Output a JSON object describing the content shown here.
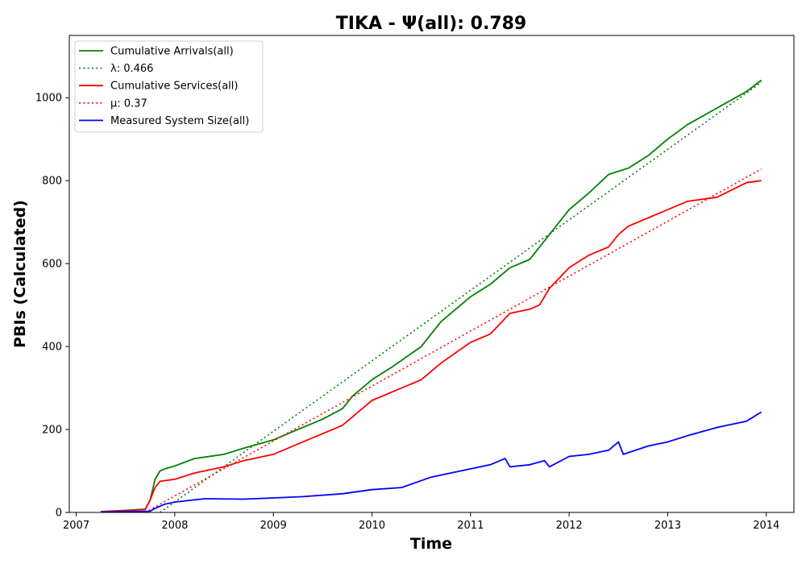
{
  "chart_data": {
    "type": "line",
    "title": "TIKA -  Ψ(all): 0.789",
    "xlabel": "Time",
    "ylabel": "PBIs (Calculated)",
    "xlim": [
      2006.93,
      2014.28
    ],
    "ylim": [
      0,
      1150
    ],
    "xticks": [
      2007,
      2008,
      2009,
      2010,
      2011,
      2012,
      2013,
      2014
    ],
    "xtick_labels": [
      "2007",
      "2008",
      "2009",
      "2010",
      "2011",
      "2012",
      "2013",
      "2014"
    ],
    "yticks": [
      0,
      200,
      400,
      600,
      800,
      1000
    ],
    "ytick_labels": [
      "0",
      "200",
      "400",
      "600",
      "800",
      "1000"
    ],
    "grid": false,
    "legend_position": "top-left",
    "series": [
      {
        "name": "Cumulative Arrivals(all)",
        "color": "#008000",
        "style": "solid",
        "x": [
          2007.25,
          2007.5,
          2007.7,
          2007.75,
          2007.8,
          2007.85,
          2007.9,
          2008.0,
          2008.2,
          2008.5,
          2008.7,
          2009.0,
          2009.2,
          2009.5,
          2009.7,
          2009.8,
          2010.0,
          2010.2,
          2010.5,
          2010.7,
          2011.0,
          2011.2,
          2011.4,
          2011.6,
          2011.8,
          2012.0,
          2012.2,
          2012.4,
          2012.6,
          2012.8,
          2013.0,
          2013.2,
          2013.5,
          2013.8,
          2013.95
        ],
        "y": [
          2,
          5,
          8,
          30,
          80,
          100,
          105,
          112,
          130,
          140,
          155,
          175,
          195,
          225,
          250,
          280,
          320,
          350,
          400,
          460,
          520,
          550,
          590,
          610,
          670,
          730,
          770,
          815,
          830,
          860,
          900,
          935,
          975,
          1015,
          1042
        ]
      },
      {
        "name": "λ: 0.466",
        "color": "#008000",
        "style": "dotted",
        "x": [
          2007.85,
          2013.95
        ],
        "y": [
          0,
          1037
        ]
      },
      {
        "name": "Cumulative Services(all)",
        "color": "#ff0000",
        "style": "solid",
        "x": [
          2007.25,
          2007.5,
          2007.7,
          2007.75,
          2007.8,
          2007.85,
          2008.0,
          2008.2,
          2008.5,
          2008.7,
          2009.0,
          2009.2,
          2009.5,
          2009.7,
          2010.0,
          2010.2,
          2010.5,
          2010.7,
          2011.0,
          2011.2,
          2011.4,
          2011.6,
          2011.7,
          2011.8,
          2012.0,
          2012.2,
          2012.4,
          2012.5,
          2012.6,
          2012.8,
          2013.0,
          2013.2,
          2013.5,
          2013.8,
          2013.95
        ],
        "y": [
          2,
          4,
          7,
          30,
          60,
          75,
          80,
          95,
          110,
          125,
          140,
          160,
          190,
          210,
          270,
          290,
          320,
          360,
          410,
          430,
          480,
          490,
          500,
          540,
          590,
          620,
          640,
          670,
          690,
          710,
          730,
          750,
          760,
          795,
          800
        ]
      },
      {
        "name": "μ: 0.37",
        "color": "#ff0000",
        "style": "dotted",
        "x": [
          2007.7,
          2013.95
        ],
        "y": [
          0,
          828
        ]
      },
      {
        "name": "Measured System Size(all)",
        "color": "#0000ff",
        "style": "solid",
        "x": [
          2007.25,
          2007.75,
          2007.8,
          2007.9,
          2008.0,
          2008.3,
          2008.7,
          2009.0,
          2009.3,
          2009.7,
          2010.0,
          2010.3,
          2010.6,
          2011.0,
          2011.2,
          2011.35,
          2011.4,
          2011.6,
          2011.75,
          2011.8,
          2012.0,
          2012.2,
          2012.4,
          2012.5,
          2012.55,
          2012.8,
          2013.0,
          2013.2,
          2013.5,
          2013.8,
          2013.95
        ],
        "y": [
          1,
          3,
          10,
          20,
          25,
          33,
          32,
          35,
          38,
          45,
          55,
          60,
          85,
          105,
          115,
          130,
          110,
          115,
          125,
          110,
          135,
          140,
          150,
          170,
          140,
          160,
          170,
          185,
          205,
          220,
          242
        ]
      }
    ]
  }
}
